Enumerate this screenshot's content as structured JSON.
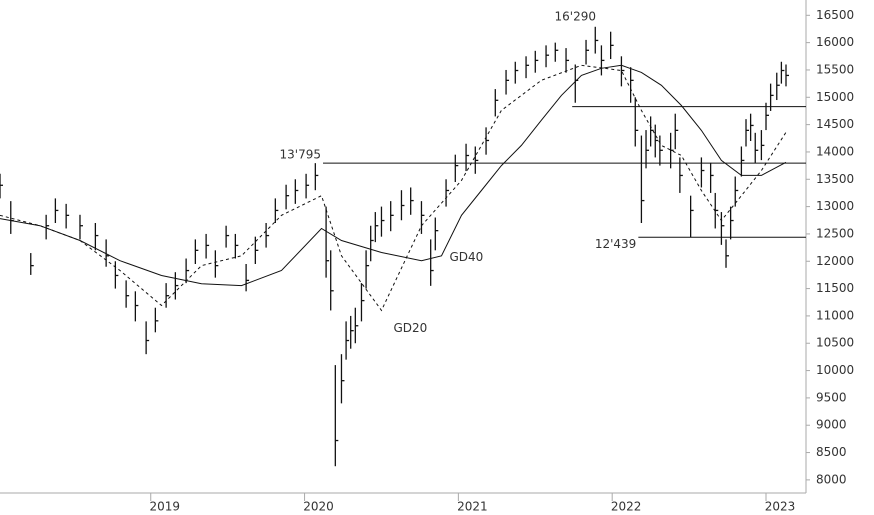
{
  "chart_data": {
    "type": "ohlc",
    "x": [
      2018.02,
      2018.09,
      2018.22,
      2018.32,
      2018.38,
      2018.45,
      2018.54,
      2018.64,
      2018.71,
      2018.77,
      2018.84,
      2018.9,
      2018.97,
      2019.03,
      2019.1,
      2019.16,
      2019.23,
      2019.29,
      2019.36,
      2019.42,
      2019.49,
      2019.55,
      2019.62,
      2019.68,
      2019.75,
      2019.81,
      2019.88,
      2019.94,
      2020.01,
      2020.07,
      2020.14,
      2020.17,
      2020.2,
      2020.24,
      2020.27,
      2020.3,
      2020.33,
      2020.37,
      2020.4,
      2020.43,
      2020.46,
      2020.5,
      2020.56,
      2020.63,
      2020.69,
      2020.76,
      2020.82,
      2020.85,
      2020.92,
      2020.98,
      2021.05,
      2021.11,
      2021.18,
      2021.24,
      2021.31,
      2021.37,
      2021.44,
      2021.5,
      2021.57,
      2021.63,
      2021.7,
      2021.76,
      2021.83,
      2021.89,
      2021.93,
      2021.99,
      2022.06,
      2022.12,
      2022.15,
      2022.19,
      2022.22,
      2022.25,
      2022.28,
      2022.31,
      2022.38,
      2022.41,
      2022.44,
      2022.51,
      2022.58,
      2022.64,
      2022.67,
      2022.71,
      2022.74,
      2022.77,
      2022.8,
      2022.84,
      2022.87,
      2022.9,
      2022.93,
      2022.97,
      2023.0,
      2023.03,
      2023.07,
      2023.1,
      2023.13
    ],
    "high": [
      13600,
      13100,
      12150,
      12850,
      13150,
      13050,
      12850,
      12700,
      12400,
      12000,
      11650,
      11450,
      10900,
      11150,
      11600,
      11800,
      12050,
      12400,
      12500,
      12200,
      12650,
      12500,
      11950,
      12450,
      12700,
      13150,
      13400,
      13500,
      13600,
      13795,
      13000,
      12200,
      10100,
      10300,
      10900,
      11000,
      11150,
      11600,
      12200,
      12650,
      12900,
      13000,
      13100,
      13300,
      13350,
      13100,
      12400,
      12800,
      13500,
      13950,
      14150,
      14100,
      14450,
      15150,
      15500,
      15650,
      15750,
      15850,
      15950,
      16000,
      15900,
      15600,
      16050,
      16290,
      15950,
      16200,
      15750,
      15550,
      15000,
      14300,
      14400,
      14650,
      14500,
      14300,
      14350,
      14700,
      13900,
      13200,
      13900,
      13800,
      13250,
      12900,
      12400,
      13000,
      13550,
      14100,
      14600,
      14700,
      14350,
      14400,
      14900,
      15250,
      15450,
      15650,
      15600
    ],
    "low": [
      13150,
      12500,
      11750,
      12400,
      12700,
      12600,
      12400,
      12200,
      11900,
      11500,
      11150,
      10900,
      10300,
      10700,
      11150,
      11300,
      11600,
      11950,
      12050,
      11700,
      12250,
      12050,
      11450,
      11950,
      12250,
      12700,
      12950,
      13050,
      13150,
      13300,
      11700,
      11100,
      8250,
      9400,
      10200,
      10400,
      10500,
      10900,
      11500,
      12000,
      12350,
      12450,
      12550,
      12750,
      12850,
      12500,
      11550,
      12200,
      13000,
      13450,
      13650,
      13600,
      13950,
      14650,
      15050,
      15250,
      15350,
      15450,
      15550,
      15650,
      15450,
      14900,
      15600,
      15800,
      15400,
      15700,
      15200,
      14900,
      14100,
      12700,
      13700,
      14100,
      13900,
      13750,
      13700,
      14050,
      13250,
      12439,
      13350,
      13250,
      12600,
      12300,
      11880,
      12400,
      13000,
      13550,
      14100,
      14200,
      13800,
      13850,
      14400,
      14750,
      14950,
      15250,
      15200
    ],
    "close": [
      13390,
      12745,
      11920,
      12650,
      12930,
      12840,
      12650,
      12470,
      12100,
      11740,
      11370,
      11190,
      10550,
      10910,
      11370,
      11555,
      11830,
      12200,
      12290,
      11920,
      12470,
      12290,
      11650,
      12200,
      12470,
      12930,
      13200,
      13295,
      13390,
      13570,
      12010,
      11460,
      8720,
      9815,
      10550,
      10730,
      10820,
      11280,
      11920,
      12380,
      12650,
      12745,
      12840,
      13020,
      13110,
      12840,
      11830,
      12560,
      13295,
      13750,
      13935,
      13845,
      14210,
      14945,
      15310,
      15490,
      15585,
      15675,
      15770,
      15860,
      15675,
      15310,
      15860,
      16040,
      15675,
      15950,
      15490,
      15310,
      14395,
      13110,
      14030,
      14395,
      14210,
      14030,
      14030,
      14395,
      13570,
      12930,
      13660,
      13570,
      12930,
      12650,
      12100,
      12745,
      13295,
      13845,
      14395,
      14485,
      14030,
      14120,
      14670,
      15035,
      15220,
      15490,
      15400
    ],
    "series": [
      {
        "name": "GD20",
        "style": "dashed",
        "color": "#111",
        "x": [
          2018.02,
          2018.28,
          2018.54,
          2018.8,
          2019.07,
          2019.33,
          2019.59,
          2019.85,
          2020.11,
          2020.24,
          2020.5,
          2020.76,
          2021.02,
          2021.28,
          2021.54,
          2021.8,
          2022.06,
          2022.19,
          2022.32,
          2022.45,
          2022.58,
          2022.71,
          2022.84,
          2022.97,
          2023.13
        ],
        "values": [
          12840,
          12650,
          12380,
          11830,
          11190,
          11920,
          12100,
          12840,
          13200,
          12100,
          11100,
          12650,
          13480,
          14760,
          15310,
          15585,
          15490,
          14760,
          14120,
          13935,
          13295,
          12745,
          13200,
          13660,
          14360
        ]
      },
      {
        "name": "GD40",
        "style": "solid",
        "color": "#111",
        "x": [
          2018.02,
          2018.28,
          2018.54,
          2018.8,
          2019.07,
          2019.33,
          2019.59,
          2019.85,
          2020.11,
          2020.24,
          2020.5,
          2020.76,
          2020.89,
          2021.02,
          2021.15,
          2021.28,
          2021.41,
          2021.54,
          2021.67,
          2021.8,
          2021.93,
          2022.06,
          2022.19,
          2022.32,
          2022.45,
          2022.58,
          2022.71,
          2022.84,
          2022.97,
          2023.13
        ],
        "values": [
          12780,
          12650,
          12380,
          12010,
          11740,
          11590,
          11555,
          11830,
          12600,
          12380,
          12160,
          12010,
          12100,
          12840,
          13295,
          13750,
          14120,
          14580,
          15035,
          15400,
          15530,
          15585,
          15455,
          15220,
          14850,
          14395,
          13845,
          13570,
          13570,
          13810
        ]
      }
    ],
    "levels": [
      {
        "value": 13795,
        "label": "13'795",
        "from": 2020.12
      },
      {
        "value": 14830,
        "from": 2021.74
      },
      {
        "value": 12439,
        "label": "12'439",
        "from": 2022.17
      }
    ],
    "peak": {
      "value": 16290,
      "label": "16'290",
      "x": 2021.89
    },
    "xlim": [
      2018.02,
      2023.26
    ],
    "xticks": [
      2019,
      2020,
      2021,
      2022,
      2023
    ],
    "ylim": [
      7760,
      16780
    ],
    "yticks": [
      8000,
      8500,
      9000,
      9500,
      10000,
      10500,
      11000,
      11500,
      12000,
      12500,
      13000,
      13500,
      14000,
      14500,
      15000,
      15500,
      16000,
      16500
    ]
  }
}
